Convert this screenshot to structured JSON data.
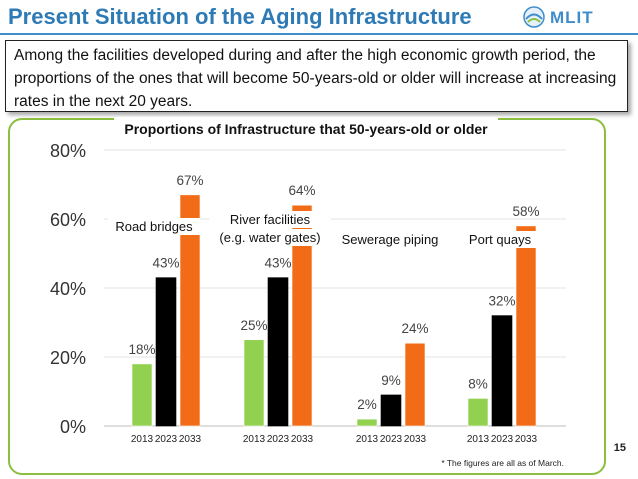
{
  "slide": {
    "title": "Present Situation of the Aging Infrastructure",
    "logo_text": "MLIT",
    "summary": "Among the facilities developed during and after the high economic growth period, the proportions of the ones that will become 50-years-old or older will increase at increasing rates in the next 20 years.",
    "page_number": "15",
    "colors": {
      "title": "#2e7ab5",
      "panel_border": "#8cbf3f"
    }
  },
  "chart_data": {
    "type": "bar",
    "title": "Proportions of Infrastructure that 50-years-old or older",
    "ylim": [
      0,
      80
    ],
    "yticks": [
      "0%",
      "20%",
      "40%",
      "60%",
      "80%"
    ],
    "grid": true,
    "groups": [
      {
        "label": "Road bridges",
        "years": [
          "2013",
          "2023",
          "2033"
        ],
        "values": [
          18,
          43,
          67
        ],
        "value_labels": [
          "18%",
          "43%",
          "67%"
        ]
      },
      {
        "label": "River facilities (e.g. water gates)",
        "label_lines": [
          "River facilities",
          "(e.g. water gates)"
        ],
        "years": [
          "2013",
          "2023",
          "2033"
        ],
        "values": [
          25,
          43,
          64
        ],
        "value_labels": [
          "25%",
          "43%",
          "64%"
        ]
      },
      {
        "label": "Sewerage piping",
        "years": [
          "2013",
          "2023",
          "2033"
        ],
        "values": [
          2,
          9,
          24
        ],
        "value_labels": [
          "2%",
          "9%",
          "24%"
        ]
      },
      {
        "label": "Port quays",
        "years": [
          "2013",
          "2023",
          "2033"
        ],
        "values": [
          8,
          32,
          58
        ],
        "value_labels": [
          "8%",
          "32%",
          "58%"
        ]
      }
    ],
    "bar_colors": [
      "#92d050",
      "#000000",
      "#f26b17"
    ],
    "footnote": "* The figures are all as of March."
  }
}
